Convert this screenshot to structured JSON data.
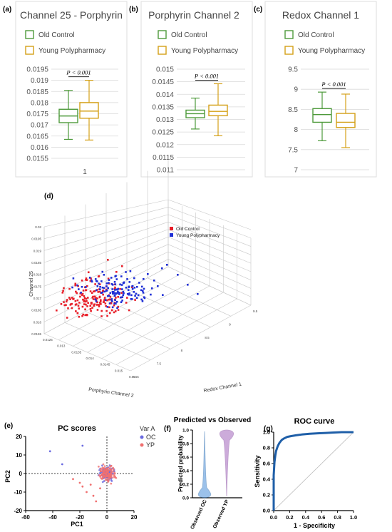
{
  "panel_labels": {
    "a": "(a)",
    "b": "(b)",
    "c": "(c)",
    "d": "(d)",
    "e": "(e)",
    "f": "(f)",
    "g": "(g)"
  },
  "legend_top": {
    "old": "Old Control",
    "young": "Young Polypharmacy"
  },
  "colors": {
    "old": "#4e9a3b",
    "young": "#d4a017",
    "red": "#e8202a",
    "blue": "#1f2fd6",
    "purple": "#8e44ad",
    "roc": "#1f5fa8"
  },
  "chart_data": [
    {
      "type": "box",
      "title": "Channel 25 - Porphyrin",
      "ylim": [
        0.0155,
        0.0195
      ],
      "yticks": [
        "0.0155",
        "0.016",
        "0.0165",
        "0.017",
        "0.0175",
        "0.018",
        "0.0185",
        "0.019",
        "0.0195"
      ],
      "xticks": [
        "1"
      ],
      "annotation": "P < 0.001",
      "series": [
        {
          "name": "Old Control",
          "whisker_low": 0.01635,
          "q1": 0.0171,
          "median": 0.0174,
          "q3": 0.0177,
          "whisker_high": 0.01855
        },
        {
          "name": "Young Polypharmacy",
          "whisker_low": 0.01632,
          "q1": 0.0173,
          "median": 0.01762,
          "q3": 0.018,
          "whisker_high": 0.019
        }
      ]
    },
    {
      "type": "box",
      "title": "Porphyrin Channel 2",
      "ylim": [
        0.011,
        0.015
      ],
      "yticks": [
        "0.011",
        "0.0115",
        "0.012",
        "0.0125",
        "0.013",
        "0.0135",
        "0.014",
        "0.0145",
        "0.015"
      ],
      "annotation": "P < 0.001",
      "series": [
        {
          "name": "Old Control",
          "whisker_low": 0.01262,
          "q1": 0.01307,
          "median": 0.01323,
          "q3": 0.01337,
          "whisker_high": 0.01385
        },
        {
          "name": "Young Polypharmacy",
          "whisker_low": 0.01235,
          "q1": 0.01315,
          "median": 0.01332,
          "q3": 0.01357,
          "whisker_high": 0.01442
        }
      ]
    },
    {
      "type": "box",
      "title": "Redox Channel 1",
      "ylim": [
        7,
        9.5
      ],
      "yticks": [
        "7",
        "7.5",
        "8",
        "8.5",
        "9",
        "9.5"
      ],
      "annotation": "P < 0.001",
      "series": [
        {
          "name": "Old Control",
          "whisker_low": 7.72,
          "q1": 8.18,
          "median": 8.37,
          "q3": 8.52,
          "whisker_high": 8.93
        },
        {
          "name": "Young Polypharmacy",
          "whisker_low": 7.55,
          "q1": 8.05,
          "median": 8.18,
          "q3": 8.4,
          "whisker_high": 8.88
        }
      ]
    },
    {
      "type": "scatter3d",
      "legend": [
        "Old Control",
        "Young Polypharmacy"
      ],
      "zlabel": "Channel 25",
      "xlabel": "Porphyrin Channel 2",
      "ylabel": "Redox Channel 1",
      "zticks": [
        "0.0155",
        "0.016",
        "0.0165",
        "0.017",
        "0.0175",
        "0.018",
        "0.0185",
        "0.019",
        "0.0195",
        "0.02"
      ],
      "xticks": [
        "0.0125",
        "0.013",
        "0.0135",
        "0.014",
        "0.0145",
        "0.015",
        "0.0155"
      ],
      "yticks": [
        "7",
        "7.5",
        "8",
        "8.5",
        "9",
        "9.5"
      ]
    },
    {
      "type": "scatter",
      "title": "PC scores",
      "xlabel": "PC1",
      "ylabel": "PC2",
      "xlim": [
        -60,
        20
      ],
      "ylim": [
        -20,
        20
      ],
      "xticks": [
        -60,
        -40,
        -20,
        0,
        20
      ],
      "yticks": [
        -20,
        -10,
        0,
        10,
        20
      ],
      "legend_title": "Var A",
      "legend": [
        "OC",
        "YP"
      ],
      "outliers_oc": [
        [
          -42,
          12
        ],
        [
          -18,
          15
        ],
        [
          -33,
          5
        ]
      ],
      "outliers_yp": [
        [
          -20,
          -5
        ],
        [
          -15,
          -10
        ],
        [
          -10,
          -12
        ],
        [
          -25,
          -3
        ],
        [
          -8,
          -15
        ],
        [
          -12,
          -6
        ],
        [
          -5,
          -8
        ],
        [
          -18,
          -7
        ]
      ]
    },
    {
      "type": "violin",
      "title": "Predicted vs Observed",
      "ylabel": "Predicted probability",
      "ylim": [
        0,
        1
      ],
      "yticks": [
        "0.0",
        "0.2",
        "0.4",
        "0.6",
        "0.8",
        "1.0"
      ],
      "categories": [
        "Observed OC",
        "Observed YP"
      ]
    },
    {
      "type": "line",
      "title": "ROC curve",
      "xlabel": "1 - Specificity",
      "ylabel": "Sensitivity",
      "xlim": [
        0,
        1
      ],
      "ylim": [
        0,
        1
      ],
      "xticks": [
        "0.0",
        "0.2",
        "0.4",
        "0.6",
        "0.8",
        "1.0"
      ],
      "yticks": [
        "0.0",
        "0.2",
        "0.4",
        "0.6",
        "0.8",
        "1.0"
      ],
      "x": [
        0,
        0.0,
        0.01,
        0.02,
        0.03,
        0.05,
        0.07,
        0.1,
        0.13,
        0.17,
        0.22,
        0.28,
        0.35,
        0.45,
        0.55,
        0.65,
        0.75,
        0.85,
        1.0
      ],
      "y": [
        0,
        0.45,
        0.62,
        0.7,
        0.76,
        0.82,
        0.86,
        0.9,
        0.92,
        0.94,
        0.95,
        0.96,
        0.97,
        0.98,
        0.985,
        0.99,
        0.995,
        1.0,
        1.0
      ]
    }
  ]
}
